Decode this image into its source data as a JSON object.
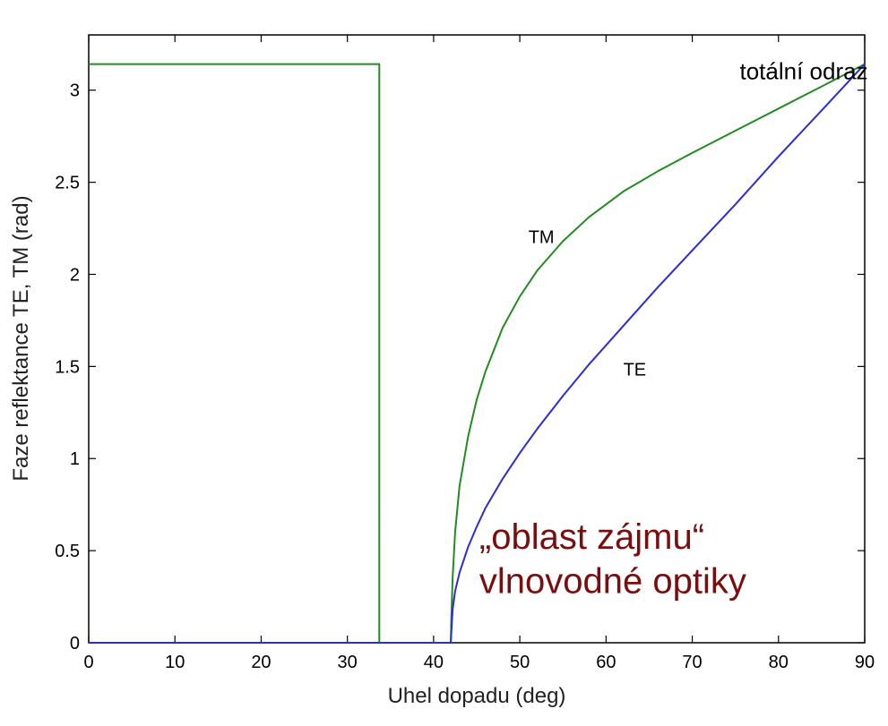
{
  "chart_data": {
    "type": "line",
    "xlabel": "Uhel dopadu (deg)",
    "ylabel": "Faze reflektance TE, TM (rad)",
    "xlim": [
      0,
      90
    ],
    "ylim": [
      0,
      3.3
    ],
    "x_ticks": [
      0,
      10,
      20,
      30,
      40,
      50,
      60,
      70,
      80,
      90
    ],
    "y_ticks": [
      0,
      0.5,
      1,
      1.5,
      2,
      2.5,
      3
    ],
    "x_tick_labels": [
      "0",
      "10",
      "20",
      "30",
      "40",
      "50",
      "60",
      "70",
      "80",
      "90"
    ],
    "y_tick_labels": [
      "0",
      "0.5",
      "1",
      "1.5",
      "2",
      "2.5",
      "3"
    ],
    "grid": false,
    "series": [
      {
        "name": "TM",
        "color": "#228b22",
        "x": [
          0,
          33.7,
          33.7,
          42.0,
          42.05,
          42.2,
          42.5,
          43,
          44,
          45,
          46,
          48,
          50,
          52,
          55,
          58,
          62,
          66,
          70,
          75,
          80,
          85,
          90
        ],
        "y": [
          3.1416,
          3.1416,
          0,
          0,
          0.12,
          0.35,
          0.6,
          0.85,
          1.12,
          1.32,
          1.47,
          1.71,
          1.88,
          2.02,
          2.18,
          2.31,
          2.45,
          2.56,
          2.66,
          2.78,
          2.9,
          3.02,
          3.1416
        ]
      },
      {
        "name": "TE",
        "color": "#2c2cd6",
        "x": [
          0,
          42.0,
          42.05,
          42.2,
          42.5,
          43,
          44,
          45,
          46,
          48,
          50,
          52,
          55,
          58,
          62,
          66,
          70,
          75,
          80,
          85,
          90
        ],
        "y": [
          0,
          0,
          0.05,
          0.18,
          0.28,
          0.38,
          0.52,
          0.63,
          0.73,
          0.89,
          1.03,
          1.16,
          1.34,
          1.51,
          1.72,
          1.93,
          2.13,
          2.38,
          2.64,
          2.89,
          3.1416
        ]
      }
    ],
    "annotations": [
      {
        "text": "totální odraz",
        "x": 75.5,
        "y": 3.06,
        "style": "top"
      },
      {
        "text": "TM",
        "x": 51,
        "y": 2.17,
        "style": "small"
      },
      {
        "text": "TE",
        "x": 62,
        "y": 1.45,
        "style": "small"
      },
      {
        "text": "„oblast  zájmu“",
        "x": 45.3,
        "y": 0.51,
        "style": "big"
      },
      {
        "text": "vlnovodné  optiky",
        "x": 45.3,
        "y": 0.27,
        "style": "big"
      }
    ]
  }
}
